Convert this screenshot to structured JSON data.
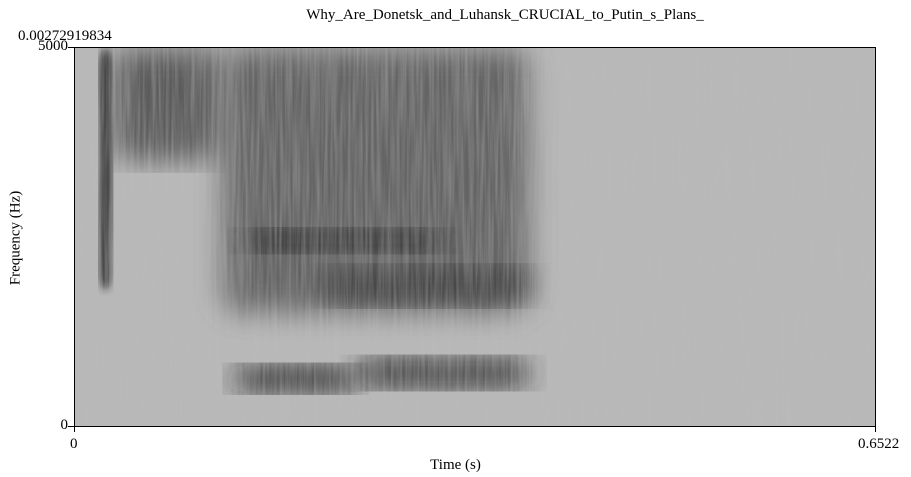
{
  "chart_data": {
    "type": "heatmap",
    "title": "Why_Are_Donetsk_and_Luhansk_CRUCIAL_to_Putin_s_Plans_",
    "time_start_label": "0.00272919834",
    "xlabel": "Time (s)",
    "ylabel": "Frequency (Hz)",
    "xlim": [
      0,
      0.6522
    ],
    "ylim": [
      0,
      5000
    ],
    "x_ticks": [
      "0",
      "0.6522"
    ],
    "y_ticks": [
      "0",
      "5000"
    ],
    "grid": false,
    "colormap": "grayscale (darker = higher energy)",
    "features": [
      {
        "t_start": 0.02,
        "t_end": 0.03,
        "f_low": 1800,
        "f_high": 5000,
        "intensity": 0.9
      },
      {
        "t_start": 0.03,
        "t_end": 0.12,
        "f_low": 3500,
        "f_high": 5000,
        "intensity": 0.6
      },
      {
        "t_start": 0.12,
        "t_end": 0.37,
        "f_low": 1500,
        "f_high": 5000,
        "intensity": 0.55
      },
      {
        "t_start": 0.13,
        "t_end": 0.23,
        "f_low": 450,
        "f_high": 800,
        "intensity": 0.95
      },
      {
        "t_start": 0.23,
        "t_end": 0.37,
        "f_low": 500,
        "f_high": 900,
        "intensity": 0.85
      },
      {
        "t_start": 0.14,
        "t_end": 0.3,
        "f_low": 2300,
        "f_high": 2600,
        "intensity": 0.8
      },
      {
        "t_start": 0.2,
        "t_end": 0.37,
        "f_low": 1600,
        "f_high": 2100,
        "intensity": 0.7
      }
    ]
  }
}
